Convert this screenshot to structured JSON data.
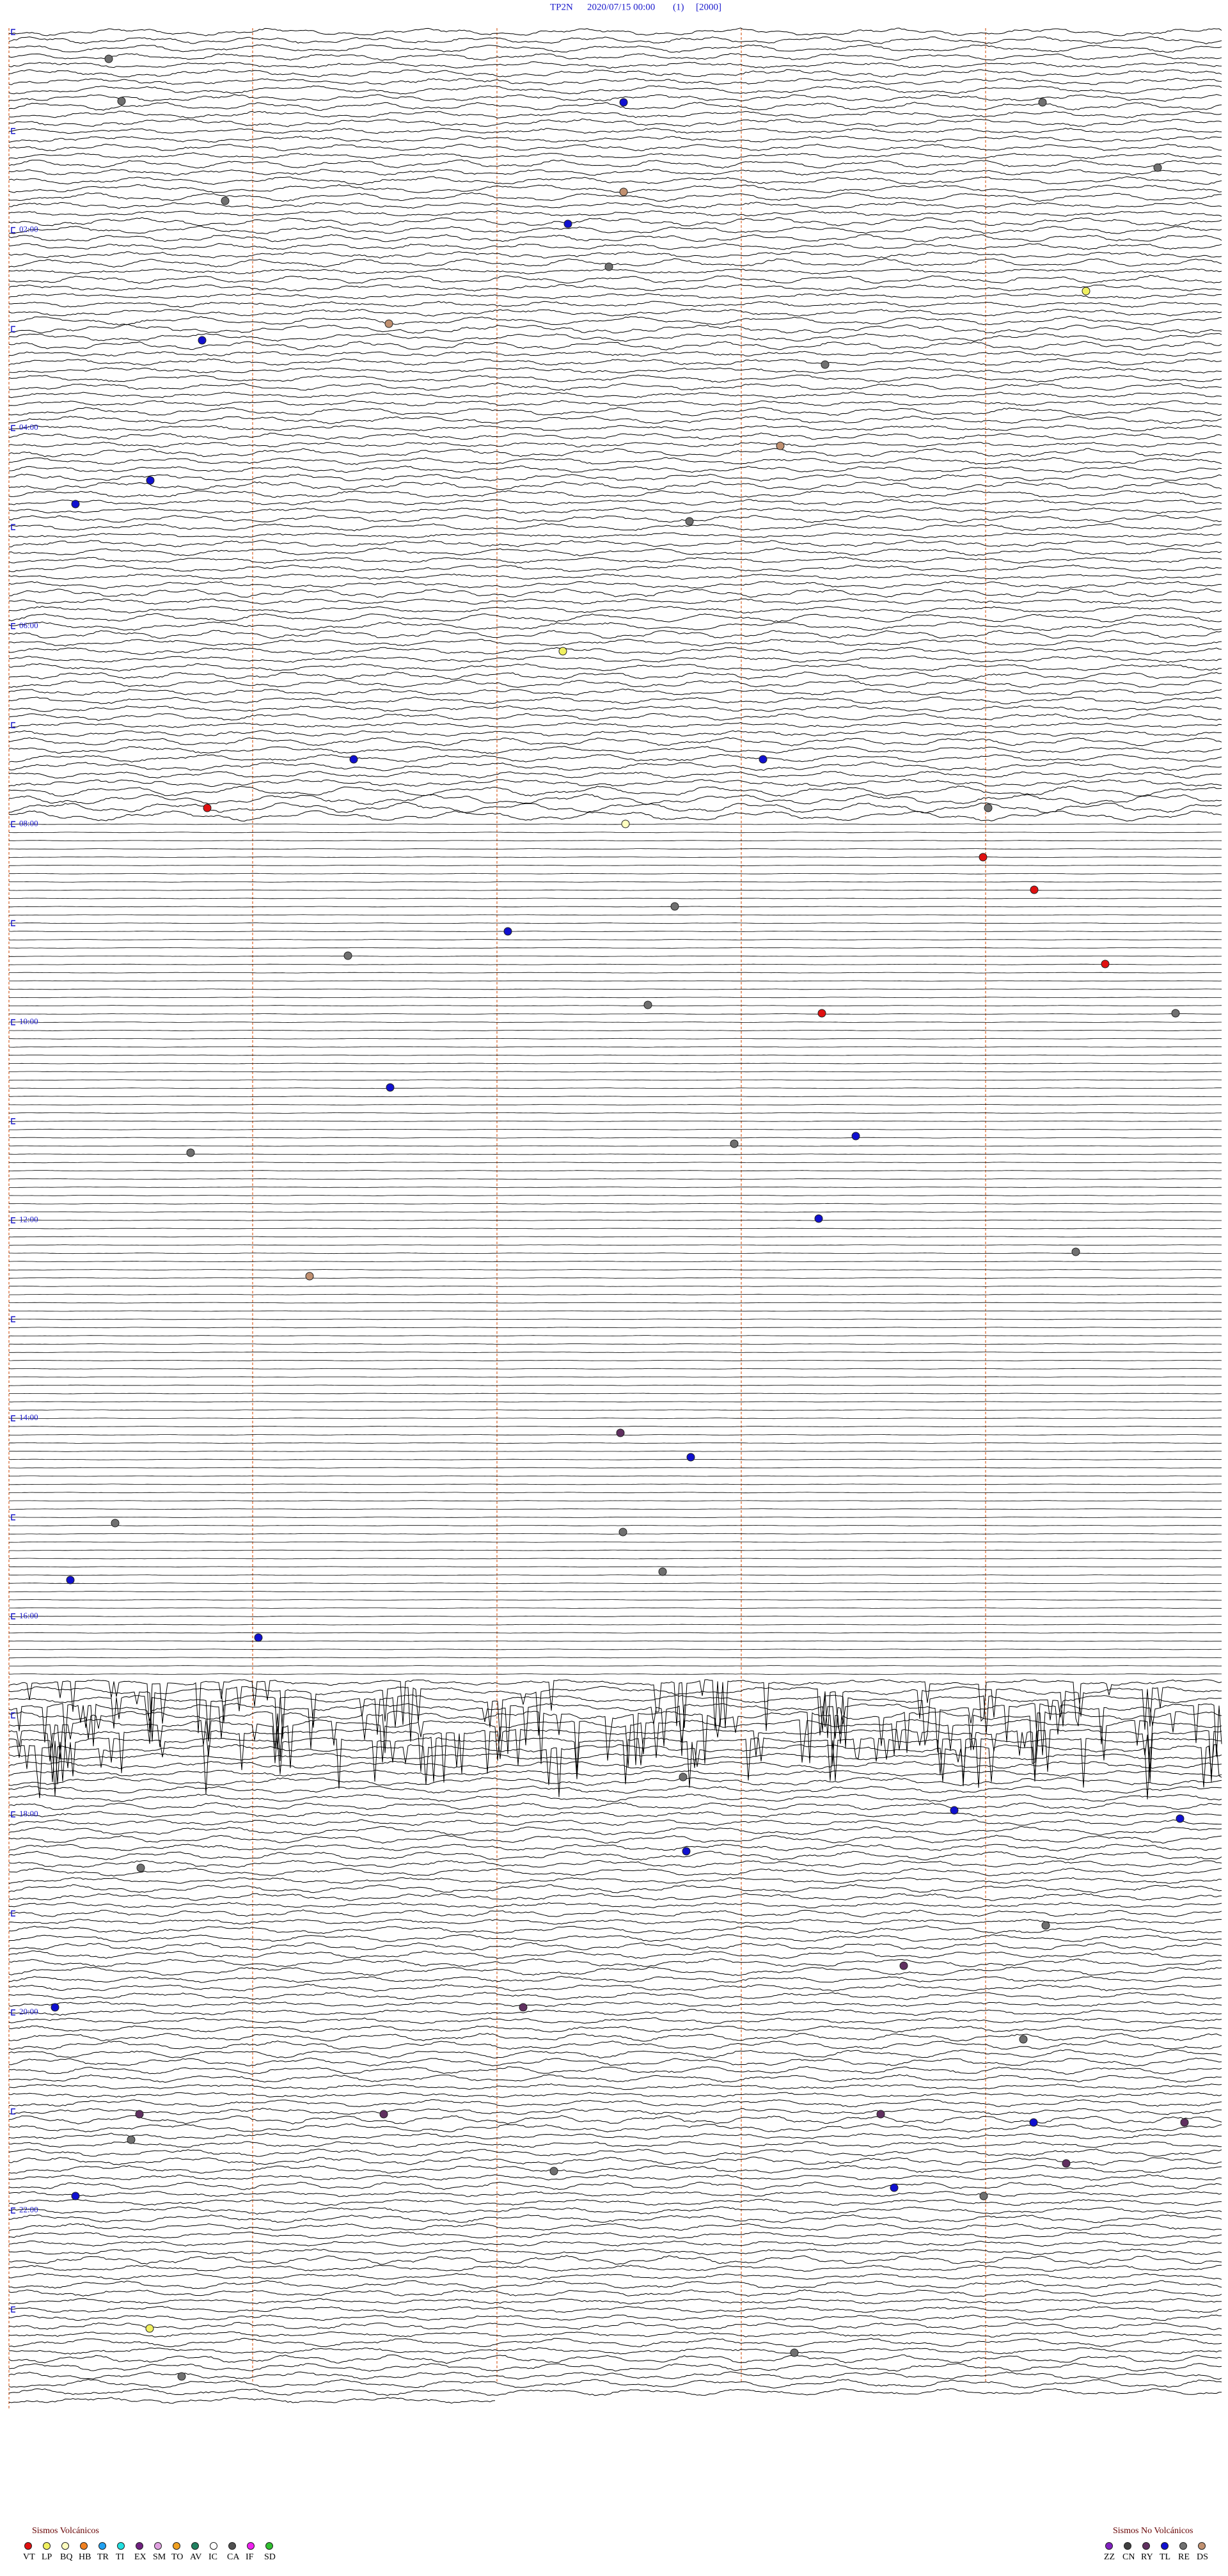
{
  "header": {
    "station": "TP2N",
    "datetime": "2020/07/15 00:00",
    "channel": "(1)",
    "scale": "[2000]"
  },
  "hour_labels": [
    "02:00",
    "04:00",
    "06:00",
    "08:00",
    "10:00",
    "12:00",
    "14:00",
    "16:00",
    "18:00",
    "20:00",
    "22:00"
  ],
  "legend": {
    "volcanic": {
      "title": "Sismos Volcánicos",
      "codes": [
        {
          "label": "VT",
          "color": "#e01010"
        },
        {
          "label": "LP",
          "color": "#f0f060"
        },
        {
          "label": "BQ",
          "color": "#ffffc0"
        },
        {
          "label": "HB",
          "color": "#f08020"
        },
        {
          "label": "TR",
          "color": "#20a0f0"
        },
        {
          "label": "TI",
          "color": "#20e0e0"
        },
        {
          "label": "EX",
          "color": "#702080"
        },
        {
          "label": "SM",
          "color": "#e0a0e0"
        },
        {
          "label": "TO",
          "color": "#f0a020"
        },
        {
          "label": "AV",
          "color": "#208060"
        },
        {
          "label": "IC",
          "color": "#ffffff"
        },
        {
          "label": "CA",
          "color": "#505050"
        },
        {
          "label": "IF",
          "color": "#f020f0"
        },
        {
          "label": "SD",
          "color": "#30c030"
        }
      ]
    },
    "non_volcanic": {
      "title": "Sismos No Volcánicos",
      "codes": [
        {
          "label": "ZZ",
          "color": "#8020c0"
        },
        {
          "label": "CN",
          "color": "#404040"
        },
        {
          "label": "RY",
          "color": "#603060"
        },
        {
          "label": "TL",
          "color": "#1010d0"
        },
        {
          "label": "RE",
          "color": "#707070"
        },
        {
          "label": "DS",
          "color": "#c09070"
        }
      ]
    }
  }
}
